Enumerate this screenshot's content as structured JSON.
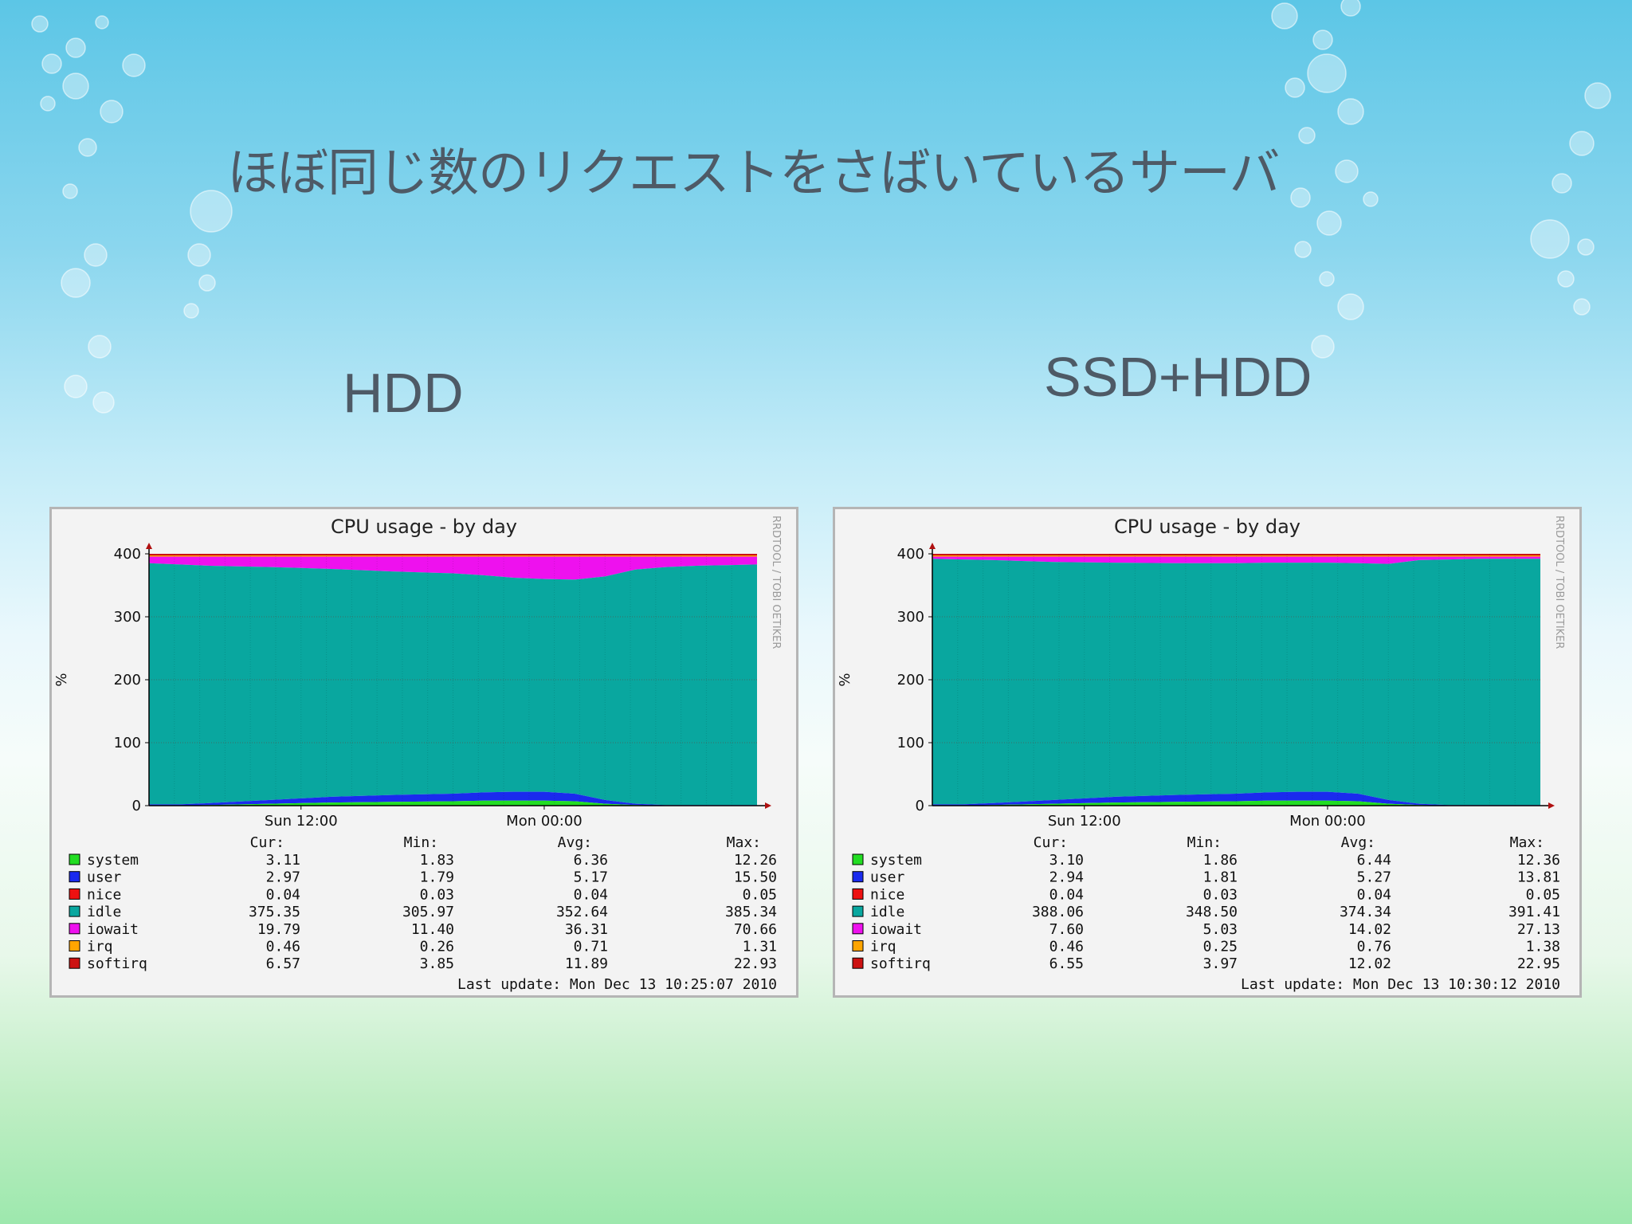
{
  "slide": {
    "title": "ほぼ同じ数のリクエストをさばいているサーバ",
    "label_left": "HDD",
    "label_right": "SSD+HDD"
  },
  "legend_colors": {
    "system": "#22dd22",
    "user": "#1a2aee",
    "nice": "#ee1111",
    "idle": "#09a79f",
    "iowait": "#ee11ee",
    "irq": "#ffa500",
    "softirq": "#cc1111"
  },
  "chart_data": [
    {
      "type": "area",
      "title": "CPU usage - by day",
      "ylabel": "%",
      "ylim": [
        0,
        400
      ],
      "yticks": [
        "0",
        "100",
        "200",
        "300",
        "400"
      ],
      "xticks": [
        "Sun 12:00",
        "Mon 00:00"
      ],
      "watermark": "RRDTOOL / TOBI OETIKER",
      "stacked_profile": {
        "x_fraction": [
          0,
          0.05,
          0.1,
          0.2,
          0.3,
          0.4,
          0.5,
          0.55,
          0.6,
          0.65,
          0.7,
          0.75,
          0.8,
          0.85,
          0.9,
          0.95,
          1.0
        ],
        "system": [
          0,
          0,
          1,
          3,
          5,
          6,
          7,
          8,
          8,
          8,
          7,
          3,
          1,
          0,
          0,
          0,
          0
        ],
        "user": [
          2,
          2,
          3,
          6,
          9,
          11,
          12,
          13,
          14,
          14,
          12,
          6,
          2,
          1,
          1,
          1,
          1
        ],
        "idle": [
          383,
          381,
          377,
          370,
          362,
          355,
          350,
          345,
          340,
          338,
          340,
          355,
          372,
          378,
          380,
          381,
          382
        ]
      },
      "stats_headers": [
        "Cur:",
        "Min:",
        "Avg:",
        "Max:"
      ],
      "stats": [
        {
          "name": "system",
          "cur": "3.11",
          "min": "1.83",
          "avg": "6.36",
          "max": "12.26"
        },
        {
          "name": "user",
          "cur": "2.97",
          "min": "1.79",
          "avg": "5.17",
          "max": "15.50"
        },
        {
          "name": "nice",
          "cur": "0.04",
          "min": "0.03",
          "avg": "0.04",
          "max": "0.05"
        },
        {
          "name": "idle",
          "cur": "375.35",
          "min": "305.97",
          "avg": "352.64",
          "max": "385.34"
        },
        {
          "name": "iowait",
          "cur": "19.79",
          "min": "11.40",
          "avg": "36.31",
          "max": "70.66"
        },
        {
          "name": "irq",
          "cur": "0.46",
          "min": "0.26",
          "avg": "0.71",
          "max": "1.31"
        },
        {
          "name": "softirq",
          "cur": "6.57",
          "min": "3.85",
          "avg": "11.89",
          "max": "22.93"
        }
      ],
      "last_update": "Last update: Mon Dec 13 10:25:07 2010"
    },
    {
      "type": "area",
      "title": "CPU usage - by day",
      "ylabel": "%",
      "ylim": [
        0,
        400
      ],
      "yticks": [
        "0",
        "100",
        "200",
        "300",
        "400"
      ],
      "xticks": [
        "Sun 12:00",
        "Mon 00:00"
      ],
      "watermark": "RRDTOOL / TOBI OETIKER",
      "stacked_profile": {
        "x_fraction": [
          0,
          0.05,
          0.1,
          0.2,
          0.3,
          0.4,
          0.5,
          0.55,
          0.6,
          0.65,
          0.7,
          0.75,
          0.8,
          0.85,
          0.9,
          0.95,
          1.0
        ],
        "system": [
          0,
          0,
          1,
          3,
          5,
          6,
          7,
          8,
          8,
          8,
          7,
          3,
          1,
          0,
          0,
          0,
          0
        ],
        "user": [
          2,
          2,
          3,
          6,
          9,
          11,
          12,
          13,
          14,
          14,
          12,
          6,
          2,
          1,
          1,
          1,
          1
        ],
        "idle": [
          390,
          389,
          386,
          378,
          372,
          368,
          366,
          365,
          364,
          364,
          366,
          375,
          387,
          390,
          391,
          391,
          391
        ]
      },
      "stats_headers": [
        "Cur:",
        "Min:",
        "Avg:",
        "Max:"
      ],
      "stats": [
        {
          "name": "system",
          "cur": "3.10",
          "min": "1.86",
          "avg": "6.44",
          "max": "12.36"
        },
        {
          "name": "user",
          "cur": "2.94",
          "min": "1.81",
          "avg": "5.27",
          "max": "13.81"
        },
        {
          "name": "nice",
          "cur": "0.04",
          "min": "0.03",
          "avg": "0.04",
          "max": "0.05"
        },
        {
          "name": "idle",
          "cur": "388.06",
          "min": "348.50",
          "avg": "374.34",
          "max": "391.41"
        },
        {
          "name": "iowait",
          "cur": "7.60",
          "min": "5.03",
          "avg": "14.02",
          "max": "27.13"
        },
        {
          "name": "irq",
          "cur": "0.46",
          "min": "0.25",
          "avg": "0.76",
          "max": "1.38"
        },
        {
          "name": "softirq",
          "cur": "6.55",
          "min": "3.97",
          "avg": "12.02",
          "max": "22.95"
        }
      ],
      "last_update": "Last update: Mon Dec 13 10:30:12 2010"
    }
  ]
}
